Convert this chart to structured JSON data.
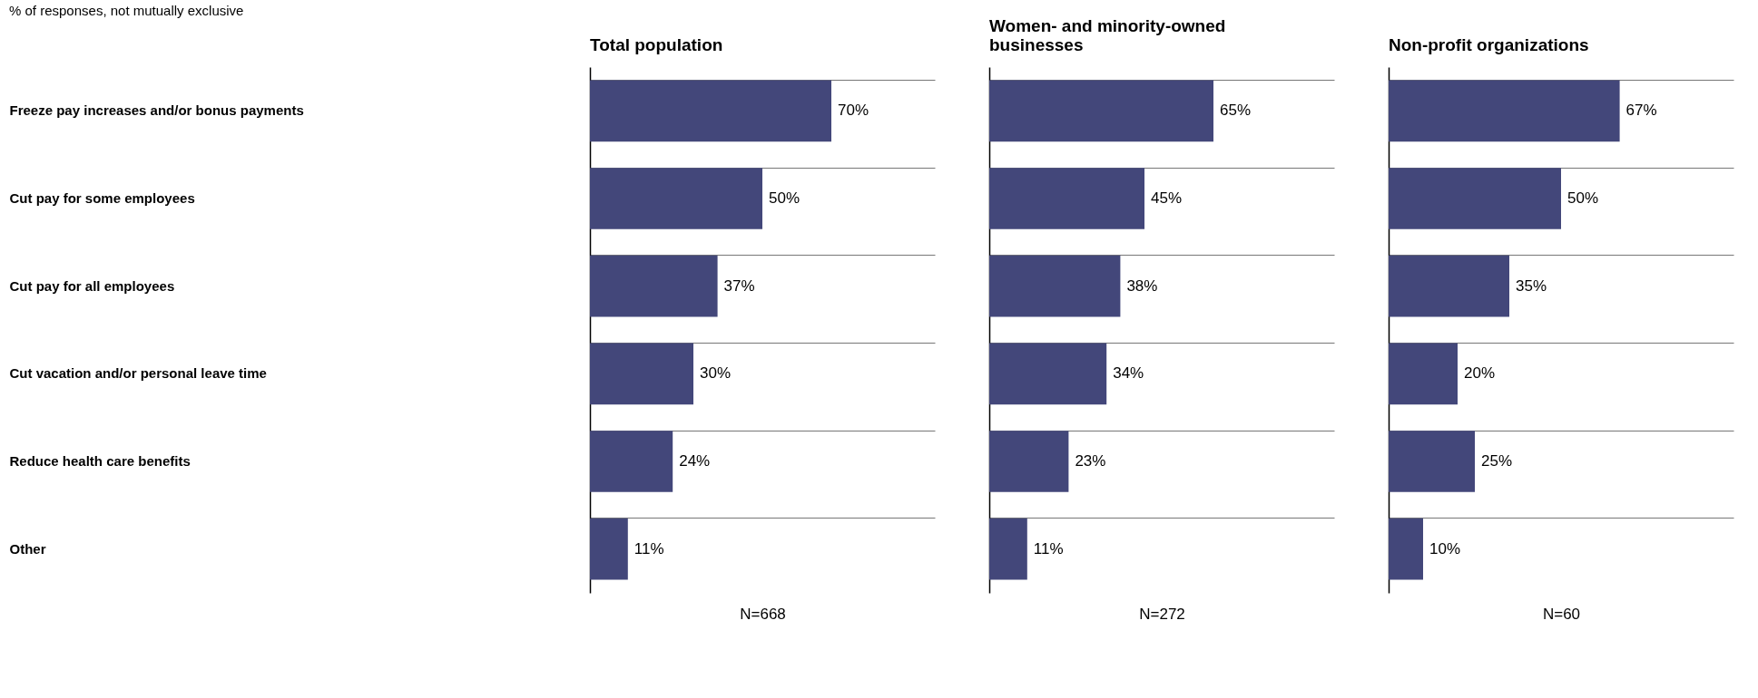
{
  "chart_data": [
    {
      "type": "bar",
      "orientation": "horizontal",
      "title": "Total population",
      "subtitle": "% of responses, not mutually exclusive",
      "categories": [
        "Freeze pay increases and/or bonus payments",
        "Cut pay for some employees",
        "Cut pay for all employees",
        "Cut vacation and/or personal leave time",
        "Reduce health care benefits",
        "Other"
      ],
      "values": [
        70,
        50,
        37,
        30,
        24,
        11
      ],
      "value_labels": [
        "70%",
        "50%",
        "37%",
        "30%",
        "24%",
        "11%"
      ],
      "color": "#43477a",
      "xlim": [
        0,
        100
      ],
      "tick_labels": "y",
      "grid": "y",
      "annotations": [
        "N=668"
      ]
    },
    {
      "type": "bar",
      "orientation": "horizontal",
      "title": "Women- and minority-owned businesses",
      "categories": [
        null,
        null,
        null,
        null,
        null,
        null
      ],
      "values": [
        65,
        45,
        38,
        34,
        23,
        11
      ],
      "value_labels": [
        "65%",
        "45%",
        "38%",
        "34%",
        "23%",
        "11%"
      ],
      "color": "#43477a",
      "xlim": [
        0,
        100
      ],
      "tick_labels": false,
      "grid": "y",
      "annotations": [
        "N=272"
      ]
    },
    {
      "type": "bar",
      "orientation": "horizontal",
      "title": "Non-profit organizations",
      "categories": [
        null,
        null,
        null,
        null,
        null,
        null
      ],
      "values": [
        67,
        50,
        35,
        20,
        25,
        10
      ],
      "value_labels": [
        "67%",
        "50%",
        "35%",
        "20%",
        "25%",
        "10%"
      ],
      "color": "#43477a",
      "xlim": [
        0,
        100
      ],
      "tick_labels": false,
      "grid": "y",
      "annotations": [
        "N=60"
      ]
    }
  ]
}
